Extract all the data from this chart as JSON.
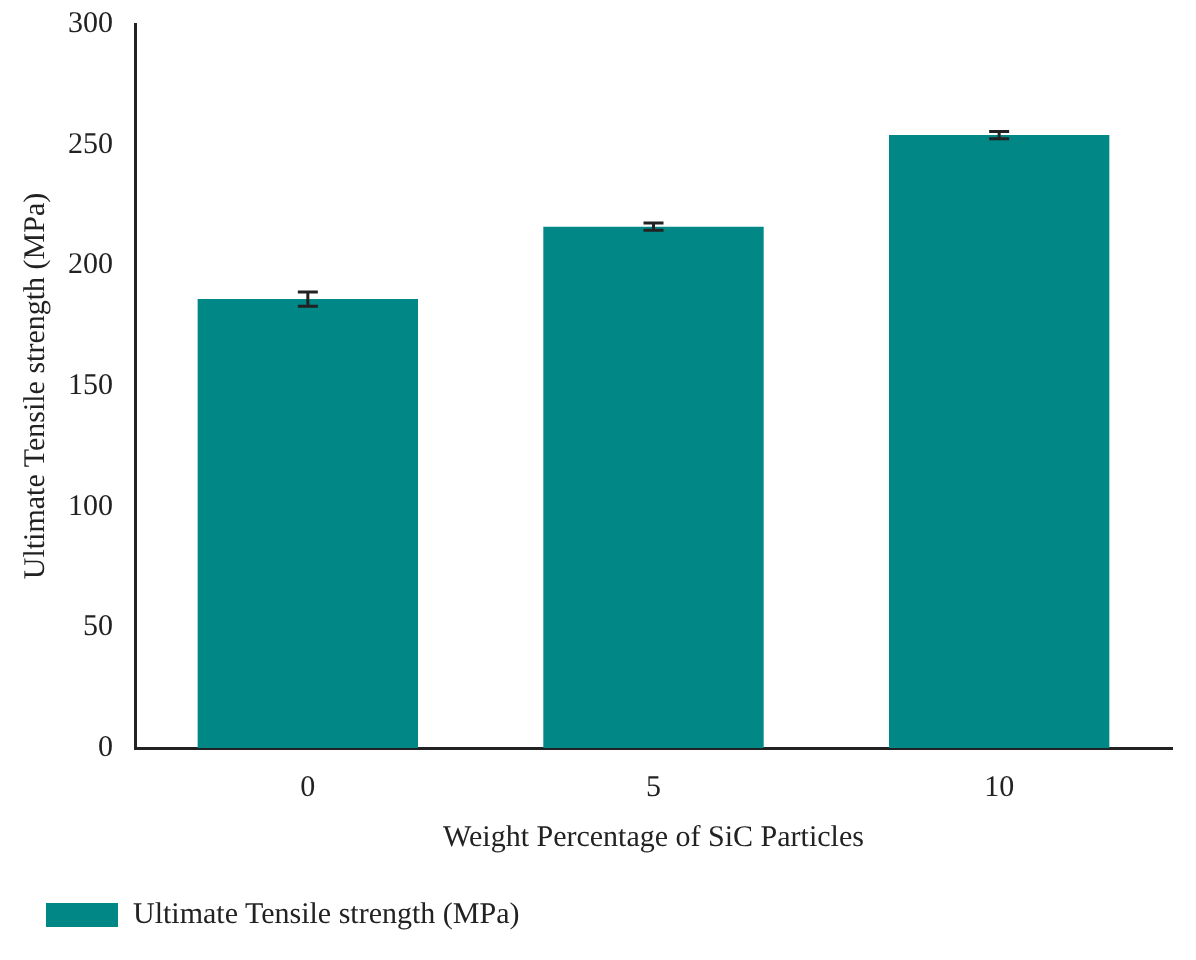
{
  "chart_data": {
    "type": "bar",
    "xlabel": "Weight Percentage of SiC Particles",
    "ylabel": "Ultimate Tensile strength (MPa)",
    "categories": [
      "0",
      "5",
      "10"
    ],
    "series": [
      {
        "name": "Ultimate Tensile strength (MPa)",
        "color": "#008786",
        "values": [
          186,
          216,
          254
        ],
        "errors": [
          3,
          1.5,
          1.5
        ]
      }
    ],
    "ylim": [
      0,
      300
    ],
    "yticks": [
      0,
      50,
      100,
      150,
      200,
      250,
      300
    ],
    "grid": false,
    "legend": "bottom left"
  }
}
